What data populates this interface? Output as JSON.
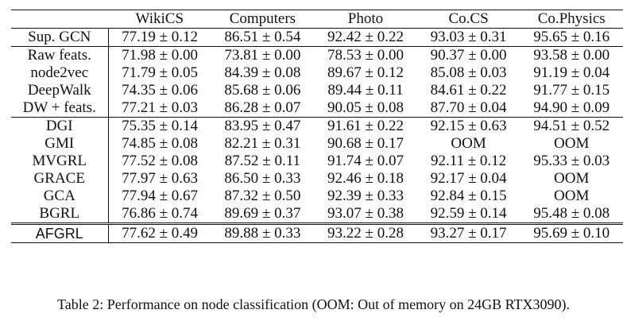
{
  "table": {
    "headers": [
      "",
      "WikiCS",
      "Computers",
      "Photo",
      "Co.CS",
      "Co.Physics"
    ],
    "rows": [
      {
        "method": "Sup. GCN",
        "values": [
          "77.19 ± 0.12",
          "86.51 ± 0.54",
          "92.42 ± 0.22",
          "93.03 ± 0.31",
          "95.65 ± 0.16"
        ]
      },
      {
        "method": "Raw feats.",
        "values": [
          "71.98 ± 0.00",
          "73.81 ± 0.00",
          "78.53 ± 0.00",
          "90.37 ± 0.00",
          "93.58 ± 0.00"
        ]
      },
      {
        "method": "node2vec",
        "values": [
          "71.79 ± 0.05",
          "84.39 ± 0.08",
          "89.67 ± 0.12",
          "85.08 ± 0.03",
          "91.19 ± 0.04"
        ]
      },
      {
        "method": "DeepWalk",
        "values": [
          "74.35 ± 0.06",
          "85.68 ± 0.06",
          "89.44 ± 0.11",
          "84.61 ± 0.22",
          "91.77 ± 0.15"
        ]
      },
      {
        "method": "DW + feats.",
        "values": [
          "77.21 ± 0.03",
          "86.28 ± 0.07",
          "90.05 ± 0.08",
          "87.70 ± 0.04",
          "94.90 ± 0.09"
        ]
      },
      {
        "method": "DGI",
        "values": [
          "75.35 ± 0.14",
          "83.95 ± 0.47",
          "91.61 ± 0.22",
          "92.15 ± 0.63",
          "94.51 ± 0.52"
        ]
      },
      {
        "method": "GMI",
        "values": [
          "74.85 ± 0.08",
          "82.21 ± 0.31",
          "90.68 ± 0.17",
          "OOM",
          "OOM"
        ]
      },
      {
        "method": "MVGRL",
        "values": [
          "77.52 ± 0.08",
          "87.52 ± 0.11",
          "91.74 ± 0.07",
          "92.11 ± 0.12",
          "95.33 ± 0.03"
        ]
      },
      {
        "method": "GRACE",
        "values": [
          "77.97 ± 0.63",
          "86.50 ± 0.33",
          "92.46 ± 0.18",
          "92.17 ± 0.04",
          "OOM"
        ]
      },
      {
        "method": "GCA",
        "values": [
          "77.94 ± 0.67",
          "87.32 ± 0.50",
          "92.39 ± 0.33",
          "92.84 ± 0.15",
          "OOM"
        ]
      },
      {
        "method": "BGRL",
        "values": [
          "76.86 ± 0.74",
          "89.69 ± 0.37",
          "93.07 ± 0.38",
          "92.59 ± 0.14",
          "95.48 ± 0.08"
        ]
      },
      {
        "method": "AFGRL",
        "values": [
          "77.62 ± 0.49",
          "89.88 ± 0.33",
          "93.22 ± 0.28",
          "93.27 ± 0.17",
          "95.69 ± 0.10"
        ]
      }
    ]
  },
  "caption": "Table 2: Performance on node classification (OOM: Out of memory on 24GB RTX3090)."
}
